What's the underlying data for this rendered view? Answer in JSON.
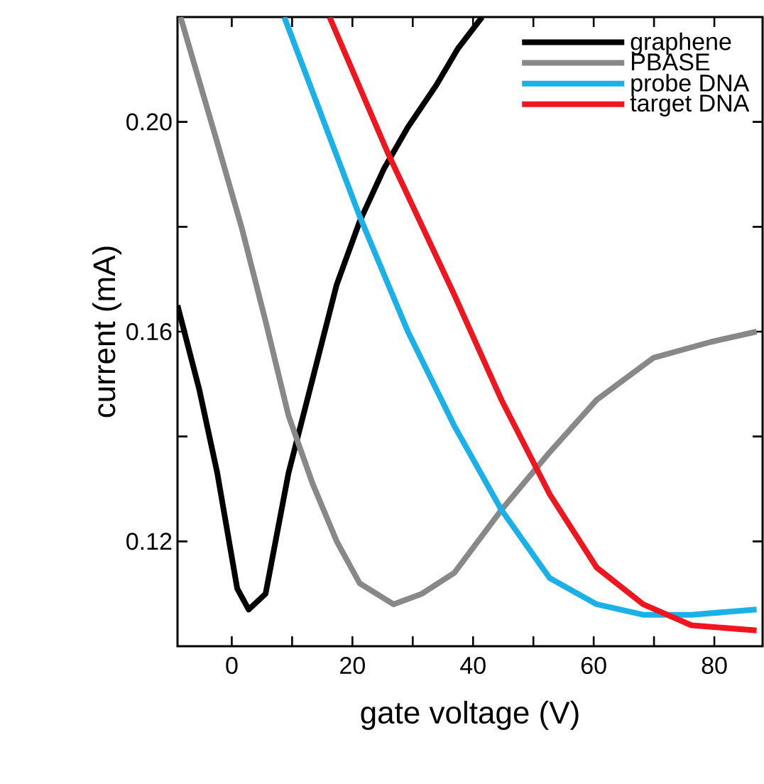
{
  "chart_data": {
    "type": "line",
    "xlabel": "gate voltage (V)",
    "ylabel": "current (mA)",
    "xlim": [
      -9,
      88
    ],
    "ylim": [
      0.1,
      0.22
    ],
    "xticks": [
      0,
      {
        "value": 10,
        "label": null
      },
      20,
      {
        "value": 30,
        "label": null
      },
      40,
      {
        "value": 50,
        "label": null
      },
      60,
      {
        "value": 70,
        "label": null
      },
      80
    ],
    "yticks": [
      0.12,
      {
        "value": 0.14,
        "label": null
      },
      0.16,
      {
        "value": 0.18,
        "label": null
      },
      {
        "value": 0.2,
        "label": "0.20"
      }
    ],
    "legend": "top right",
    "marker": "none",
    "line_style": "solid",
    "series": [
      {
        "name": "graphene",
        "color": "#000000",
        "x": [
          -9,
          -5.4,
          -2.4,
          0.9,
          2.8,
          5.6,
          9.4,
          13.4,
          17.4,
          21.2,
          25.2,
          29.2,
          33.9,
          37.5,
          41.5
        ],
        "values": [
          0.165,
          0.149,
          0.133,
          0.111,
          0.107,
          0.11,
          0.133,
          0.151,
          0.169,
          0.181,
          0.191,
          0.199,
          0.207,
          0.214,
          0.22
        ]
      },
      {
        "name": "PBASE",
        "color": "#888888",
        "x": [
          -8.5,
          -2.4,
          1.6,
          5.6,
          9.4,
          13.4,
          17.4,
          21.2,
          26.8,
          31.5,
          36.9,
          44.7,
          52.7,
          60.5,
          69.9,
          79.3,
          87
        ],
        "values": [
          0.22,
          0.196,
          0.18,
          0.162,
          0.144,
          0.131,
          0.12,
          0.112,
          0.108,
          0.11,
          0.114,
          0.126,
          0.137,
          0.147,
          0.155,
          0.158,
          0.16
        ]
      },
      {
        "name": "probe DNA",
        "color": "#1ab0e8",
        "x": [
          8.7,
          21.2,
          29.2,
          36.9,
          44.7,
          52.7,
          60.5,
          68.2,
          76.2,
          87
        ],
        "values": [
          0.22,
          0.182,
          0.16,
          0.142,
          0.126,
          0.113,
          0.108,
          0.106,
          0.106,
          0.107
        ]
      },
      {
        "name": "target DNA",
        "color": "#f0161f",
        "x": [
          16.2,
          25.9,
          36.9,
          44.7,
          52.7,
          60.5,
          68.2,
          76.2,
          87
        ],
        "values": [
          0.22,
          0.194,
          0.167,
          0.147,
          0.129,
          0.115,
          0.108,
          0.104,
          0.103
        ]
      }
    ]
  }
}
